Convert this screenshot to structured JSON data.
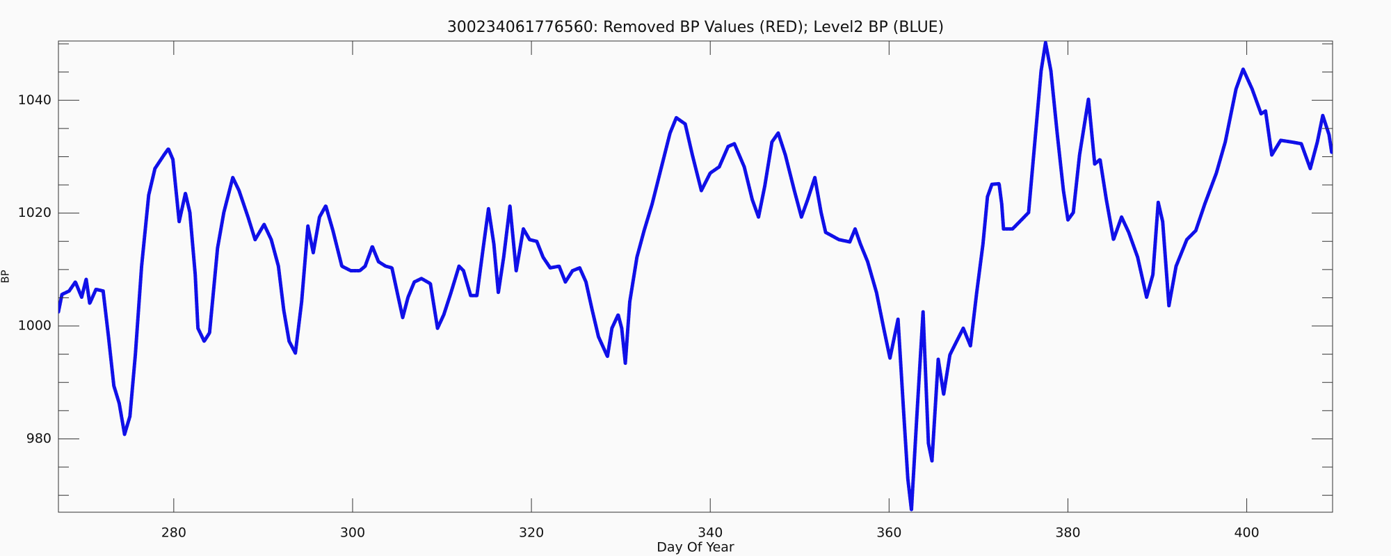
{
  "chart_data": {
    "type": "line",
    "title": "300234061776560: Removed BP Values (RED); Level2 BP (BLUE)",
    "xlabel": "Day Of Year",
    "ylabel": "BP",
    "xlim": [
      267.1,
      409.6
    ],
    "ylim": [
      967,
      1050.5
    ],
    "xticks": [
      280,
      300,
      320,
      340,
      360,
      380,
      400
    ],
    "yticks": [
      980,
      1000,
      1020,
      1040
    ],
    "yminorticks": [
      970,
      975,
      985,
      990,
      995,
      1005,
      1010,
      1015,
      1025,
      1030,
      1035,
      1045,
      1050
    ],
    "series": [
      {
        "name": "Level2 BP",
        "color": "#1010e8",
        "x": [
          267.1,
          267.5,
          268.3,
          269.0,
          269.7,
          270.2,
          270.6,
          271.3,
          272.1,
          272.7,
          273.3,
          273.9,
          274.5,
          275.1,
          275.7,
          276.4,
          277.2,
          277.9,
          278.9,
          279.4,
          279.9,
          280.6,
          281.3,
          281.8,
          282.4,
          282.7,
          283.4,
          284.0,
          284.9,
          285.6,
          286.6,
          287.3,
          288.3,
          289.1,
          290.1,
          290.9,
          291.7,
          292.3,
          292.9,
          293.6,
          294.3,
          295.0,
          295.6,
          296.3,
          297.0,
          297.8,
          298.8,
          299.8,
          300.8,
          301.4,
          302.2,
          302.9,
          303.7,
          304.4,
          305.0,
          305.6,
          306.2,
          306.9,
          307.7,
          308.7,
          309.5,
          310.2,
          311.0,
          311.9,
          312.4,
          313.2,
          313.9,
          314.6,
          315.2,
          315.8,
          316.3,
          316.9,
          317.6,
          318.3,
          319.1,
          319.8,
          320.6,
          321.3,
          322.1,
          323.1,
          323.8,
          324.6,
          325.4,
          326.1,
          326.8,
          327.5,
          328.5,
          329.0,
          329.7,
          330.1,
          330.5,
          331.0,
          331.8,
          332.6,
          333.5,
          334.5,
          335.5,
          336.2,
          337.2,
          338.0,
          339.0,
          340.0,
          341.0,
          342.0,
          342.7,
          343.8,
          344.7,
          345.4,
          346.1,
          346.9,
          347.6,
          348.4,
          349.4,
          350.2,
          350.9,
          351.7,
          352.4,
          352.9,
          354.4,
          355.6,
          356.2,
          356.8,
          357.6,
          358.6,
          359.4,
          360.1,
          361.0,
          361.6,
          362.1,
          362.5,
          363.1,
          363.8,
          364.4,
          364.8,
          365.5,
          366.1,
          366.8,
          367.4,
          368.3,
          369.1,
          369.8,
          370.5,
          371.0,
          371.5,
          372.3,
          372.6,
          372.8,
          373.8,
          374.8,
          375.6,
          376.3,
          377.0,
          377.5,
          378.1,
          378.8,
          379.5,
          380.0,
          380.6,
          381.3,
          382.3,
          383.0,
          383.6,
          384.3,
          385.1,
          386.0,
          386.8,
          387.8,
          388.8,
          389.5,
          390.1,
          390.6,
          391.3,
          392.1,
          393.3,
          394.3,
          395.3,
          396.6,
          397.6,
          398.8,
          399.6,
          400.6,
          401.6,
          402.1,
          402.8,
          403.8,
          405.0,
          406.1,
          407.1,
          407.9,
          408.5,
          409.2,
          409.5
        ],
        "values": [
          1002.5,
          1005.6,
          1006.2,
          1007.8,
          1005.1,
          1008.3,
          1004.0,
          1006.5,
          1006.2,
          998.1,
          989.4,
          986.3,
          980.8,
          984.0,
          994.9,
          1010.6,
          1023.2,
          1027.9,
          1030.3,
          1031.4,
          1029.5,
          1018.5,
          1023.5,
          1020.1,
          1009.1,
          999.6,
          997.3,
          998.8,
          1013.8,
          1020.1,
          1026.3,
          1024.0,
          1019.3,
          1015.3,
          1018.0,
          1015.3,
          1010.6,
          1002.8,
          997.3,
          995.2,
          1004.3,
          1017.7,
          1013.0,
          1019.3,
          1021.3,
          1016.9,
          1010.6,
          1009.8,
          1009.8,
          1010.6,
          1014.1,
          1011.4,
          1010.6,
          1010.3,
          1005.9,
          1001.5,
          1005.1,
          1007.8,
          1008.4,
          1007.5,
          999.6,
          1002.0,
          1005.9,
          1010.6,
          1009.8,
          1005.4,
          1005.4,
          1013.8,
          1020.8,
          1014.5,
          1005.9,
          1012.2,
          1021.3,
          1009.8,
          1017.2,
          1015.3,
          1015.0,
          1012.2,
          1010.3,
          1010.6,
          1007.8,
          1009.8,
          1010.3,
          1007.8,
          1002.8,
          998.1,
          994.6,
          999.6,
          1002.0,
          999.6,
          993.4,
          1004.3,
          1012.2,
          1016.9,
          1021.6,
          1027.9,
          1034.2,
          1036.9,
          1035.8,
          1030.3,
          1024.0,
          1027.1,
          1028.2,
          1031.8,
          1032.3,
          1028.2,
          1022.4,
          1019.3,
          1024.8,
          1032.6,
          1034.2,
          1030.3,
          1024.0,
          1019.3,
          1022.4,
          1026.3,
          1020.1,
          1016.6,
          1015.3,
          1014.9,
          1017.2,
          1014.5,
          1011.4,
          1005.9,
          999.6,
          994.3,
          1001.2,
          985.5,
          972.9,
          967.4,
          983.9,
          1002.5,
          979.2,
          976.1,
          994.1,
          987.9,
          994.9,
          996.8,
          999.6,
          996.5,
          1005.9,
          1014.5,
          1022.9,
          1025.1,
          1025.2,
          1021.6,
          1017.2,
          1017.2,
          1018.8,
          1020.1,
          1032.6,
          1045.2,
          1050.2,
          1045.2,
          1034.2,
          1024.0,
          1018.8,
          1020.1,
          1030.3,
          1040.2,
          1028.7,
          1029.5,
          1022.4,
          1015.3,
          1019.3,
          1016.6,
          1012.2,
          1005.1,
          1009.1,
          1021.9,
          1018.5,
          1003.6,
          1010.6,
          1015.3,
          1016.9,
          1021.6,
          1027.1,
          1032.6,
          1042.0,
          1045.5,
          1042.0,
          1037.6,
          1038.1,
          1030.3,
          1032.9,
          1032.6,
          1032.3,
          1027.9,
          1032.6,
          1037.3,
          1033.9,
          1030.8
        ]
      }
    ]
  }
}
